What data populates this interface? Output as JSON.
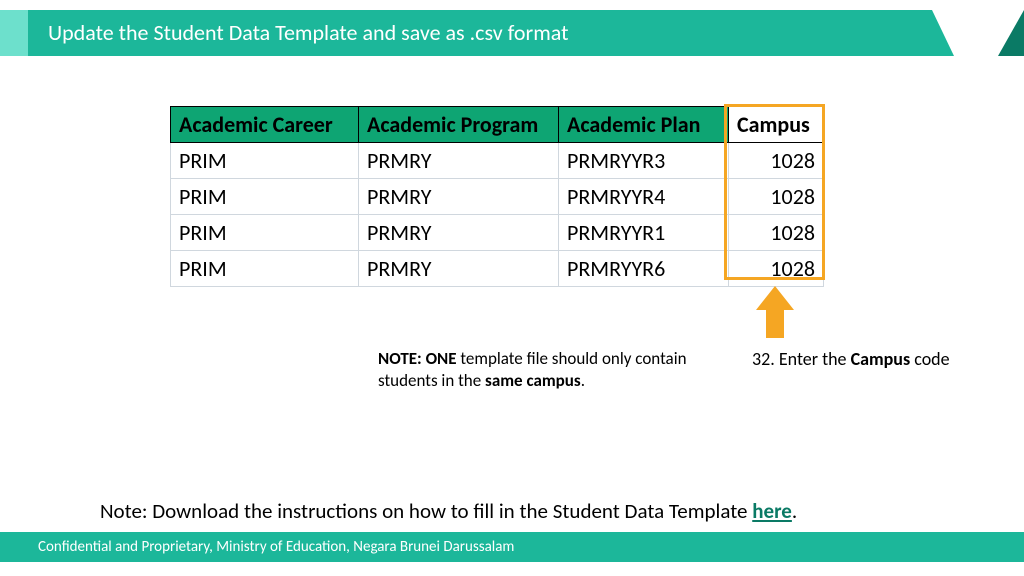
{
  "header": {
    "title": "Update the Student Data Template and save as .csv format"
  },
  "table": {
    "columns": [
      "Academic Career",
      "Academic Program",
      "Academic Plan",
      "Campus"
    ],
    "rows": [
      [
        "PRIM",
        "PRMRY",
        "PRMRYYR3",
        "1028"
      ],
      [
        "PRIM",
        "PRMRY",
        "PRMRYYR4",
        "1028"
      ],
      [
        "PRIM",
        "PRMRY",
        "PRMRYYR1",
        "1028"
      ],
      [
        "PRIM",
        "PRMRY",
        "PRMRYYR6",
        "1028"
      ]
    ],
    "highlight_column_index": 3,
    "header_bg": "#0ea573",
    "highlight_border": "#f5a623"
  },
  "note": {
    "prefix": "NOTE: ONE",
    "body1": " template file should only contain students in the ",
    "bold2": "same campus",
    "suffix": "."
  },
  "step": {
    "num": "32. Enter the ",
    "bold": "Campus",
    "suffix": " code"
  },
  "bottom_note": {
    "text": "Note: Download the instructions on how to fill in the Student Data Template ",
    "link": "here",
    "suffix": "."
  },
  "footer": {
    "text": "Confidential and Proprietary, Ministry of Education, Negara Brunei Darussalam"
  },
  "colors": {
    "brand": "#1cb79a",
    "brand_light": "#6de0cc",
    "brand_dark": "#0a7a65",
    "arrow": "#f5a623"
  }
}
